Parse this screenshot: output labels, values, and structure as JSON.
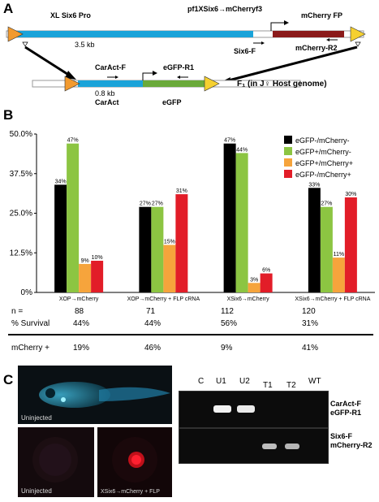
{
  "panels": {
    "a": "A",
    "b": "B",
    "c": "C"
  },
  "panel_a": {
    "construct_title": "pf1XSix6→mCherryf3",
    "promoter_name": "XL  Six6 Pro",
    "promoter_size": "3.5 kb",
    "fp_name": "mCherry FP",
    "primer_six6f": "Six6-F",
    "primer_mcherry_r2": "mCherry-R2",
    "primer_caract_f": "CarAct-F",
    "primer_egfp_r1": "eGFP-R1",
    "caract_size": "0.8 kb",
    "caract_name": "CarAct",
    "egfp_name": "eGFP",
    "host_label": "F₁ (in J♀ Host genome)"
  },
  "chart_data": {
    "type": "bar",
    "categories": [
      "XOP→mCherry",
      "XOP→mCherry + FLP cRNA",
      "XSix6→mCherry",
      "XSix6→mCherry + FLP cRNA"
    ],
    "series": [
      {
        "name": "eGFP-/mCherry-",
        "color": "#000000",
        "values": [
          34,
          27,
          47,
          33
        ]
      },
      {
        "name": "eGFP+/mCherry-",
        "color": "#8cc542",
        "values": [
          47,
          27,
          44,
          27
        ]
      },
      {
        "name": "eGFP+/mCherry+",
        "color": "#f6a43c",
        "values": [
          9,
          15,
          3,
          11
        ]
      },
      {
        "name": "eGFP-/mCherry+",
        "color": "#e21d28",
        "values": [
          10,
          31,
          6,
          30
        ]
      }
    ],
    "yticks": [
      "0%",
      "12.5%",
      "25.0%",
      "37.5%",
      "50.0%"
    ],
    "ylim": [
      0,
      50
    ],
    "legend_position": "top-right",
    "data_label_suffix": "%"
  },
  "table": {
    "rows": [
      {
        "label": "n =",
        "values": [
          "88",
          "71",
          "112",
          "120"
        ]
      },
      {
        "label": "% Survival",
        "values": [
          "44%",
          "44%",
          "56%",
          "31%"
        ]
      },
      {
        "label": "mCherry +",
        "values": [
          "19%",
          "46%",
          "9%",
          "41%"
        ]
      }
    ]
  },
  "panel_c": {
    "photo_top_caption": "Uninjected",
    "photo_bl_caption": "Uninjected",
    "photo_br_caption": "XSix6→mCherry + FLP",
    "lanes": [
      "C",
      "U1",
      "U2",
      "T1",
      "T2",
      "WT"
    ],
    "gel_row1_label_line1": "CarAct-F",
    "gel_row1_label_line2": "eGFP-R1",
    "gel_row2_label_line1": "Six6-F",
    "gel_row2_label_line2": "mCherry-R2"
  }
}
